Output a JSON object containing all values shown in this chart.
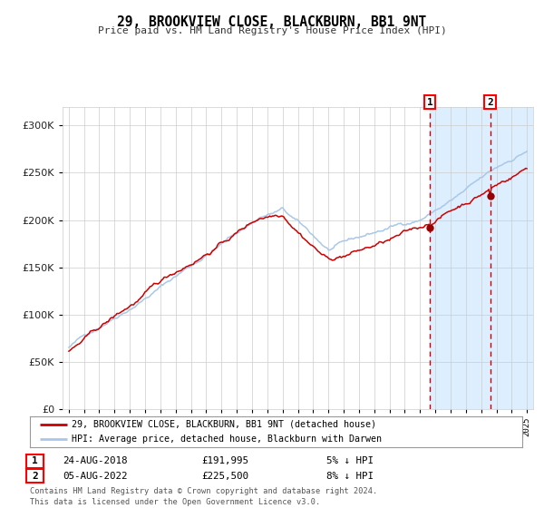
{
  "title": "29, BROOKVIEW CLOSE, BLACKBURN, BB1 9NT",
  "subtitle": "Price paid vs. HM Land Registry's House Price Index (HPI)",
  "legend_line1": "29, BROOKVIEW CLOSE, BLACKBURN, BB1 9NT (detached house)",
  "legend_line2": "HPI: Average price, detached house, Blackburn with Darwen",
  "annotation1_label": "1",
  "annotation1_date": "24-AUG-2018",
  "annotation1_price": "£191,995",
  "annotation1_hpi": "5% ↓ HPI",
  "annotation2_label": "2",
  "annotation2_date": "05-AUG-2022",
  "annotation2_price": "£225,500",
  "annotation2_hpi": "8% ↓ HPI",
  "footer": "Contains HM Land Registry data © Crown copyright and database right 2024.\nThis data is licensed under the Open Government Licence v3.0.",
  "hpi_color": "#a8c8e8",
  "price_color": "#cc0000",
  "dot_color": "#990000",
  "vline_color": "#cc0000",
  "shade_color": "#ddeeff",
  "grid_color": "#cccccc",
  "background_color": "#ffffff",
  "ylim": [
    0,
    320000
  ],
  "yticks": [
    0,
    50000,
    100000,
    150000,
    200000,
    250000,
    300000
  ],
  "start_year": 1995,
  "end_year": 2025,
  "sale1_year": 2018.64,
  "sale2_year": 2022.59,
  "sale1_price": 191995,
  "sale2_price": 225500
}
